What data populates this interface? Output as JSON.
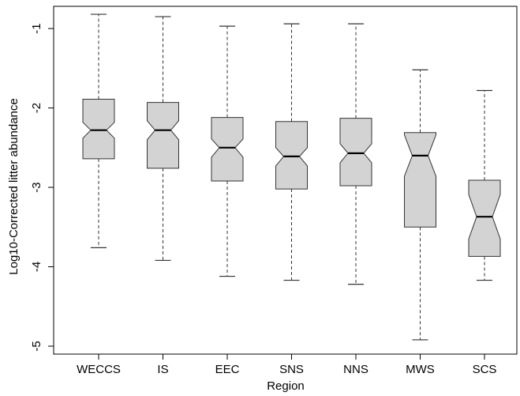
{
  "chart_data": {
    "type": "boxplot",
    "notched": true,
    "title": "",
    "xlabel": "Region",
    "ylabel": "Log10-Corrected litter abundance",
    "ylim": [
      -5.1,
      -0.72
    ],
    "yticks": [
      -1,
      -2,
      -3,
      -4,
      -5
    ],
    "ytick_labels": [
      "-1",
      "-2",
      "-3",
      "-4",
      "-5"
    ],
    "colors": {
      "box_fill": "#d3d3d3",
      "stroke": "#333333"
    },
    "categories": [
      "WECCS",
      "IS",
      "EEC",
      "SNS",
      "NNS",
      "MWS",
      "SCS"
    ],
    "boxes": [
      {
        "category": "WECCS",
        "whisker_low": -3.76,
        "q1": -2.64,
        "median": -2.28,
        "q3": -1.89,
        "whisker_high": -0.82,
        "notch_low": -2.38,
        "notch_high": -2.18
      },
      {
        "category": "IS",
        "whisker_low": -3.92,
        "q1": -2.76,
        "median": -2.28,
        "q3": -1.93,
        "whisker_high": -0.85,
        "notch_low": -2.4,
        "notch_high": -2.16
      },
      {
        "category": "EEC",
        "whisker_low": -4.12,
        "q1": -2.92,
        "median": -2.5,
        "q3": -2.12,
        "whisker_high": -0.97,
        "notch_low": -2.62,
        "notch_high": -2.39
      },
      {
        "category": "SNS",
        "whisker_low": -4.17,
        "q1": -3.02,
        "median": -2.61,
        "q3": -2.17,
        "whisker_high": -0.94,
        "notch_low": -2.73,
        "notch_high": -2.5
      },
      {
        "category": "NNS",
        "whisker_low": -4.22,
        "q1": -2.98,
        "median": -2.57,
        "q3": -2.13,
        "whisker_high": -0.94,
        "notch_low": -2.69,
        "notch_high": -2.45
      },
      {
        "category": "MWS",
        "whisker_low": -4.92,
        "q1": -3.5,
        "median": -2.6,
        "q3": -2.31,
        "whisker_high": -1.52,
        "notch_low": -2.86,
        "notch_high": -2.34
      },
      {
        "category": "SCS",
        "whisker_low": -4.17,
        "q1": -3.87,
        "median": -3.37,
        "q3": -2.91,
        "whisker_high": -1.78,
        "notch_low": -3.65,
        "notch_high": -3.09
      }
    ]
  }
}
